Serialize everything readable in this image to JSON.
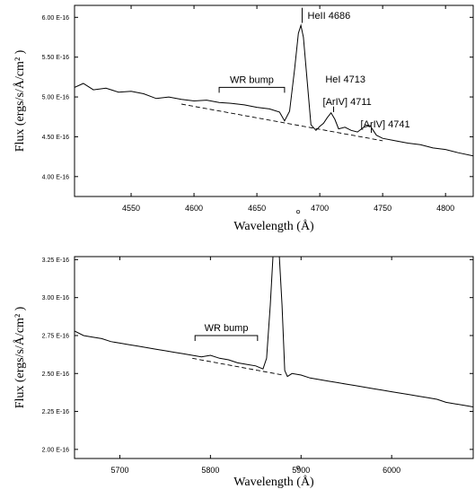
{
  "chart_data": [
    {
      "type": "line",
      "xlabel": "Wavelength (Å)",
      "ylabel": "Flux (ergs/s/Å/cm² )",
      "xlim": [
        4505,
        4822
      ],
      "ylim": [
        3.75,
        6.15
      ],
      "y_scale_label": "E-16",
      "xticks": [
        4550,
        4600,
        4650,
        4700,
        4750,
        4800
      ],
      "yticks": [
        4.0,
        4.5,
        5.0,
        5.5,
        6.0
      ],
      "ytick_labels": [
        "4.00 E-16",
        "4.50 E-16",
        "5.00 E-16",
        "5.50 E-16",
        "6.00 E-16"
      ],
      "grid": false,
      "series": [
        {
          "style": "solid",
          "x": [
            4505,
            4512,
            4520,
            4530,
            4540,
            4550,
            4560,
            4570,
            4580,
            4590,
            4600,
            4610,
            4620,
            4630,
            4640,
            4650,
            4660,
            4668,
            4672,
            4676,
            4680,
            4683,
            4685,
            4687,
            4690,
            4693,
            4697,
            4700,
            4703,
            4706,
            4709,
            4712,
            4715,
            4720,
            4725,
            4730,
            4735,
            4740,
            4745,
            4750,
            4760,
            4770,
            4780,
            4790,
            4800,
            4810,
            4822
          ],
          "y": [
            5.12,
            5.17,
            5.09,
            5.11,
            5.06,
            5.07,
            5.04,
            4.98,
            5.0,
            4.97,
            4.95,
            4.96,
            4.93,
            4.92,
            4.9,
            4.87,
            4.85,
            4.81,
            4.7,
            4.82,
            5.35,
            5.8,
            5.9,
            5.75,
            5.2,
            4.65,
            4.58,
            4.63,
            4.67,
            4.74,
            4.8,
            4.72,
            4.6,
            4.62,
            4.58,
            4.56,
            4.62,
            4.64,
            4.52,
            4.48,
            4.45,
            4.42,
            4.4,
            4.36,
            4.34,
            4.3,
            4.26
          ]
        },
        {
          "style": "dashed",
          "x": [
            4590,
            4750
          ],
          "y": [
            4.91,
            4.45
          ]
        }
      ],
      "annotations": [
        {
          "text": "HeII 4686",
          "x": 4686,
          "y": 5.98,
          "marker_top": 6.12,
          "marker_bottom": 5.93
        },
        {
          "text": "HeI 4713",
          "x": 4713,
          "y": 5.18
        },
        {
          "text": "[ArIV] 4711",
          "x": 4711,
          "y": 4.9,
          "marker_top": 4.88,
          "marker_bottom": 4.81
        },
        {
          "text": "[ArIV] 4741",
          "x": 4741,
          "y": 4.62,
          "marker_top": 4.61,
          "marker_bottom": 4.55
        }
      ],
      "range_bracket": {
        "label": "WR bump",
        "x_start": 4620,
        "x_end": 4672,
        "y": 5.12
      }
    },
    {
      "type": "line",
      "xlabel": "Wavelength (Å)",
      "ylabel": "Flux (ergs/s/Å/cm² )",
      "xlim": [
        5650,
        6090
      ],
      "ylim": [
        1.94,
        3.27
      ],
      "y_scale_label": "E-16",
      "xticks": [
        5700,
        5800,
        5900,
        6000
      ],
      "yticks": [
        2.0,
        2.25,
        2.5,
        2.75,
        3.0,
        3.25
      ],
      "ytick_labels": [
        "2.00 E-16",
        "2.25 E-16",
        "2.50 E-16",
        "2.75 E-16",
        "3.00 E-16",
        "3.25 E-16"
      ],
      "grid": false,
      "series": [
        {
          "style": "solid",
          "x": [
            5650,
            5660,
            5670,
            5680,
            5690,
            5700,
            5710,
            5720,
            5730,
            5740,
            5750,
            5760,
            5770,
            5780,
            5790,
            5800,
            5810,
            5820,
            5830,
            5840,
            5850,
            5858,
            5862,
            5866,
            5869,
            5872,
            5876,
            5879,
            5882,
            5885,
            5890,
            5900,
            5910,
            5920,
            5930,
            5940,
            5950,
            5960,
            5970,
            5980,
            5990,
            6000,
            6010,
            6020,
            6030,
            6040,
            6050,
            6060,
            6070,
            6080,
            6090
          ],
          "y": [
            2.78,
            2.75,
            2.74,
            2.73,
            2.71,
            2.7,
            2.69,
            2.68,
            2.67,
            2.66,
            2.65,
            2.64,
            2.63,
            2.62,
            2.61,
            2.62,
            2.6,
            2.59,
            2.57,
            2.56,
            2.55,
            2.53,
            2.6,
            2.95,
            3.27,
            3.27,
            3.27,
            2.95,
            2.52,
            2.48,
            2.5,
            2.49,
            2.47,
            2.46,
            2.45,
            2.44,
            2.43,
            2.42,
            2.41,
            2.4,
            2.39,
            2.38,
            2.37,
            2.36,
            2.35,
            2.34,
            2.33,
            2.31,
            2.3,
            2.29,
            2.28
          ]
        },
        {
          "style": "dashed",
          "x": [
            5780,
            5880
          ],
          "y": [
            2.6,
            2.49
          ]
        }
      ],
      "annotations": [],
      "range_bracket": {
        "label": "WR bump",
        "x_start": 5783,
        "x_end": 5852,
        "y": 2.75
      }
    }
  ]
}
